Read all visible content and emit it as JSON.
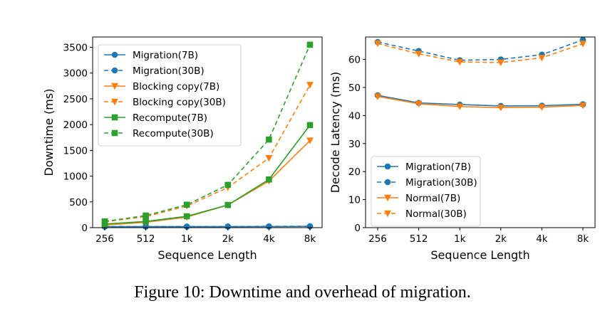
{
  "caption": "Figure 10: Downtime and overhead of migration.",
  "colors": {
    "blue": "#1f77b4",
    "orange": "#ff7f0e",
    "green": "#2ca02c"
  },
  "chart_data": [
    {
      "type": "line",
      "title": "",
      "xlabel": "Sequence Length",
      "ylabel": "Downtime (ms)",
      "categories": [
        "256",
        "512",
        "1k",
        "2k",
        "4k",
        "8k"
      ],
      "ylim": [
        0,
        3700
      ],
      "yticks": [
        0,
        500,
        1000,
        1500,
        2000,
        2500,
        3000,
        3500
      ],
      "grid": false,
      "legend": "top-left",
      "series": [
        {
          "name": "Migration(7B)",
          "color": "blue",
          "dash": false,
          "marker": "circle",
          "values": [
            20,
            20,
            20,
            20,
            22,
            24
          ]
        },
        {
          "name": "Migration(30B)",
          "color": "blue",
          "dash": true,
          "marker": "circle",
          "values": [
            22,
            22,
            22,
            23,
            25,
            28
          ]
        },
        {
          "name": "Blocking copy(7B)",
          "color": "orange",
          "dash": false,
          "marker": "triangle",
          "values": [
            50,
            105,
            205,
            440,
            905,
            1690
          ]
        },
        {
          "name": "Blocking copy(30B)",
          "color": "orange",
          "dash": true,
          "marker": "triangle",
          "values": [
            115,
            215,
            420,
            780,
            1350,
            2770
          ]
        },
        {
          "name": "Recompute(7B)",
          "color": "green",
          "dash": false,
          "marker": "square",
          "values": [
            70,
            120,
            220,
            440,
            935,
            1990
          ]
        },
        {
          "name": "Recompute(30B)",
          "color": "green",
          "dash": true,
          "marker": "square",
          "values": [
            120,
            235,
            445,
            830,
            1710,
            3550
          ]
        }
      ]
    },
    {
      "type": "line",
      "title": "",
      "xlabel": "Sequence Length",
      "ylabel": "Decode Latency (ms)",
      "categories": [
        "256",
        "512",
        "1k",
        "2k",
        "4k",
        "8k"
      ],
      "ylim": [
        0,
        68
      ],
      "yticks": [
        0,
        10,
        20,
        30,
        40,
        50,
        60
      ],
      "grid": false,
      "legend": "bottom-left",
      "series": [
        {
          "name": "Migration(7B)",
          "color": "blue",
          "dash": false,
          "marker": "circle",
          "values": [
            47.2,
            44.5,
            43.9,
            43.4,
            43.5,
            44.0
          ]
        },
        {
          "name": "Migration(30B)",
          "color": "blue",
          "dash": true,
          "marker": "circle",
          "values": [
            66.2,
            63.0,
            59.7,
            60.0,
            61.7,
            67.0
          ]
        },
        {
          "name": "Normal(7B)",
          "color": "orange",
          "dash": false,
          "marker": "triangle",
          "values": [
            46.8,
            44.2,
            43.2,
            42.8,
            43.0,
            43.6
          ]
        },
        {
          "name": "Normal(30B)",
          "color": "orange",
          "dash": true,
          "marker": "triangle",
          "values": [
            65.7,
            62.0,
            59.1,
            58.9,
            60.6,
            65.6
          ]
        }
      ]
    }
  ]
}
